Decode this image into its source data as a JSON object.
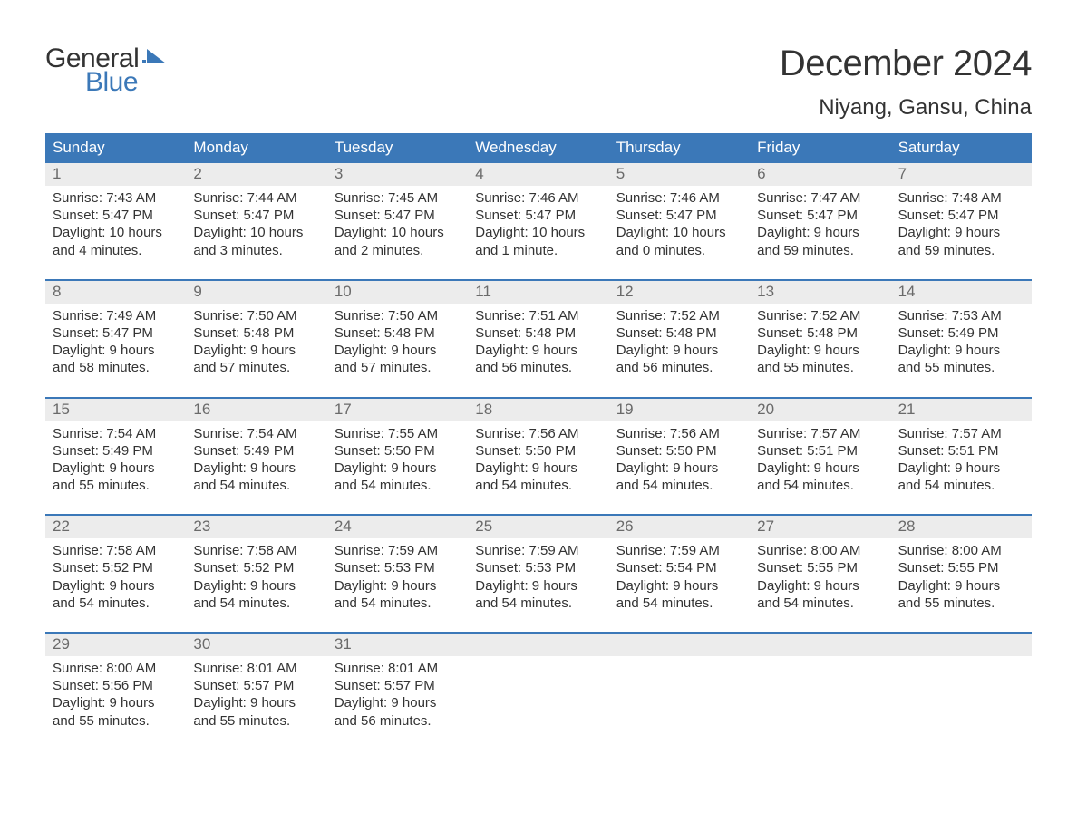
{
  "brand": {
    "name_top": "General",
    "name_bottom": "Blue",
    "accent_color": "#3b78b8"
  },
  "title": "December 2024",
  "location": "Niyang, Gansu, China",
  "colors": {
    "header_bg": "#3b78b8",
    "header_text": "#ffffff",
    "daynum_bg": "#ececec",
    "daynum_text": "#6a6a6a",
    "body_text": "#333333",
    "row_border": "#3b78b8",
    "page_bg": "#ffffff"
  },
  "typography": {
    "title_fontsize": 40,
    "location_fontsize": 24,
    "weekday_fontsize": 17,
    "daynum_fontsize": 17,
    "body_fontsize": 15
  },
  "weekdays": [
    "Sunday",
    "Monday",
    "Tuesday",
    "Wednesday",
    "Thursday",
    "Friday",
    "Saturday"
  ],
  "weeks": [
    [
      {
        "n": "1",
        "sunrise": "Sunrise: 7:43 AM",
        "sunset": "Sunset: 5:47 PM",
        "day1": "Daylight: 10 hours",
        "day2": "and 4 minutes."
      },
      {
        "n": "2",
        "sunrise": "Sunrise: 7:44 AM",
        "sunset": "Sunset: 5:47 PM",
        "day1": "Daylight: 10 hours",
        "day2": "and 3 minutes."
      },
      {
        "n": "3",
        "sunrise": "Sunrise: 7:45 AM",
        "sunset": "Sunset: 5:47 PM",
        "day1": "Daylight: 10 hours",
        "day2": "and 2 minutes."
      },
      {
        "n": "4",
        "sunrise": "Sunrise: 7:46 AM",
        "sunset": "Sunset: 5:47 PM",
        "day1": "Daylight: 10 hours",
        "day2": "and 1 minute."
      },
      {
        "n": "5",
        "sunrise": "Sunrise: 7:46 AM",
        "sunset": "Sunset: 5:47 PM",
        "day1": "Daylight: 10 hours",
        "day2": "and 0 minutes."
      },
      {
        "n": "6",
        "sunrise": "Sunrise: 7:47 AM",
        "sunset": "Sunset: 5:47 PM",
        "day1": "Daylight: 9 hours",
        "day2": "and 59 minutes."
      },
      {
        "n": "7",
        "sunrise": "Sunrise: 7:48 AM",
        "sunset": "Sunset: 5:47 PM",
        "day1": "Daylight: 9 hours",
        "day2": "and 59 minutes."
      }
    ],
    [
      {
        "n": "8",
        "sunrise": "Sunrise: 7:49 AM",
        "sunset": "Sunset: 5:47 PM",
        "day1": "Daylight: 9 hours",
        "day2": "and 58 minutes."
      },
      {
        "n": "9",
        "sunrise": "Sunrise: 7:50 AM",
        "sunset": "Sunset: 5:48 PM",
        "day1": "Daylight: 9 hours",
        "day2": "and 57 minutes."
      },
      {
        "n": "10",
        "sunrise": "Sunrise: 7:50 AM",
        "sunset": "Sunset: 5:48 PM",
        "day1": "Daylight: 9 hours",
        "day2": "and 57 minutes."
      },
      {
        "n": "11",
        "sunrise": "Sunrise: 7:51 AM",
        "sunset": "Sunset: 5:48 PM",
        "day1": "Daylight: 9 hours",
        "day2": "and 56 minutes."
      },
      {
        "n": "12",
        "sunrise": "Sunrise: 7:52 AM",
        "sunset": "Sunset: 5:48 PM",
        "day1": "Daylight: 9 hours",
        "day2": "and 56 minutes."
      },
      {
        "n": "13",
        "sunrise": "Sunrise: 7:52 AM",
        "sunset": "Sunset: 5:48 PM",
        "day1": "Daylight: 9 hours",
        "day2": "and 55 minutes."
      },
      {
        "n": "14",
        "sunrise": "Sunrise: 7:53 AM",
        "sunset": "Sunset: 5:49 PM",
        "day1": "Daylight: 9 hours",
        "day2": "and 55 minutes."
      }
    ],
    [
      {
        "n": "15",
        "sunrise": "Sunrise: 7:54 AM",
        "sunset": "Sunset: 5:49 PM",
        "day1": "Daylight: 9 hours",
        "day2": "and 55 minutes."
      },
      {
        "n": "16",
        "sunrise": "Sunrise: 7:54 AM",
        "sunset": "Sunset: 5:49 PM",
        "day1": "Daylight: 9 hours",
        "day2": "and 54 minutes."
      },
      {
        "n": "17",
        "sunrise": "Sunrise: 7:55 AM",
        "sunset": "Sunset: 5:50 PM",
        "day1": "Daylight: 9 hours",
        "day2": "and 54 minutes."
      },
      {
        "n": "18",
        "sunrise": "Sunrise: 7:56 AM",
        "sunset": "Sunset: 5:50 PM",
        "day1": "Daylight: 9 hours",
        "day2": "and 54 minutes."
      },
      {
        "n": "19",
        "sunrise": "Sunrise: 7:56 AM",
        "sunset": "Sunset: 5:50 PM",
        "day1": "Daylight: 9 hours",
        "day2": "and 54 minutes."
      },
      {
        "n": "20",
        "sunrise": "Sunrise: 7:57 AM",
        "sunset": "Sunset: 5:51 PM",
        "day1": "Daylight: 9 hours",
        "day2": "and 54 minutes."
      },
      {
        "n": "21",
        "sunrise": "Sunrise: 7:57 AM",
        "sunset": "Sunset: 5:51 PM",
        "day1": "Daylight: 9 hours",
        "day2": "and 54 minutes."
      }
    ],
    [
      {
        "n": "22",
        "sunrise": "Sunrise: 7:58 AM",
        "sunset": "Sunset: 5:52 PM",
        "day1": "Daylight: 9 hours",
        "day2": "and 54 minutes."
      },
      {
        "n": "23",
        "sunrise": "Sunrise: 7:58 AM",
        "sunset": "Sunset: 5:52 PM",
        "day1": "Daylight: 9 hours",
        "day2": "and 54 minutes."
      },
      {
        "n": "24",
        "sunrise": "Sunrise: 7:59 AM",
        "sunset": "Sunset: 5:53 PM",
        "day1": "Daylight: 9 hours",
        "day2": "and 54 minutes."
      },
      {
        "n": "25",
        "sunrise": "Sunrise: 7:59 AM",
        "sunset": "Sunset: 5:53 PM",
        "day1": "Daylight: 9 hours",
        "day2": "and 54 minutes."
      },
      {
        "n": "26",
        "sunrise": "Sunrise: 7:59 AM",
        "sunset": "Sunset: 5:54 PM",
        "day1": "Daylight: 9 hours",
        "day2": "and 54 minutes."
      },
      {
        "n": "27",
        "sunrise": "Sunrise: 8:00 AM",
        "sunset": "Sunset: 5:55 PM",
        "day1": "Daylight: 9 hours",
        "day2": "and 54 minutes."
      },
      {
        "n": "28",
        "sunrise": "Sunrise: 8:00 AM",
        "sunset": "Sunset: 5:55 PM",
        "day1": "Daylight: 9 hours",
        "day2": "and 55 minutes."
      }
    ],
    [
      {
        "n": "29",
        "sunrise": "Sunrise: 8:00 AM",
        "sunset": "Sunset: 5:56 PM",
        "day1": "Daylight: 9 hours",
        "day2": "and 55 minutes."
      },
      {
        "n": "30",
        "sunrise": "Sunrise: 8:01 AM",
        "sunset": "Sunset: 5:57 PM",
        "day1": "Daylight: 9 hours",
        "day2": "and 55 minutes."
      },
      {
        "n": "31",
        "sunrise": "Sunrise: 8:01 AM",
        "sunset": "Sunset: 5:57 PM",
        "day1": "Daylight: 9 hours",
        "day2": "and 56 minutes."
      },
      null,
      null,
      null,
      null
    ]
  ]
}
